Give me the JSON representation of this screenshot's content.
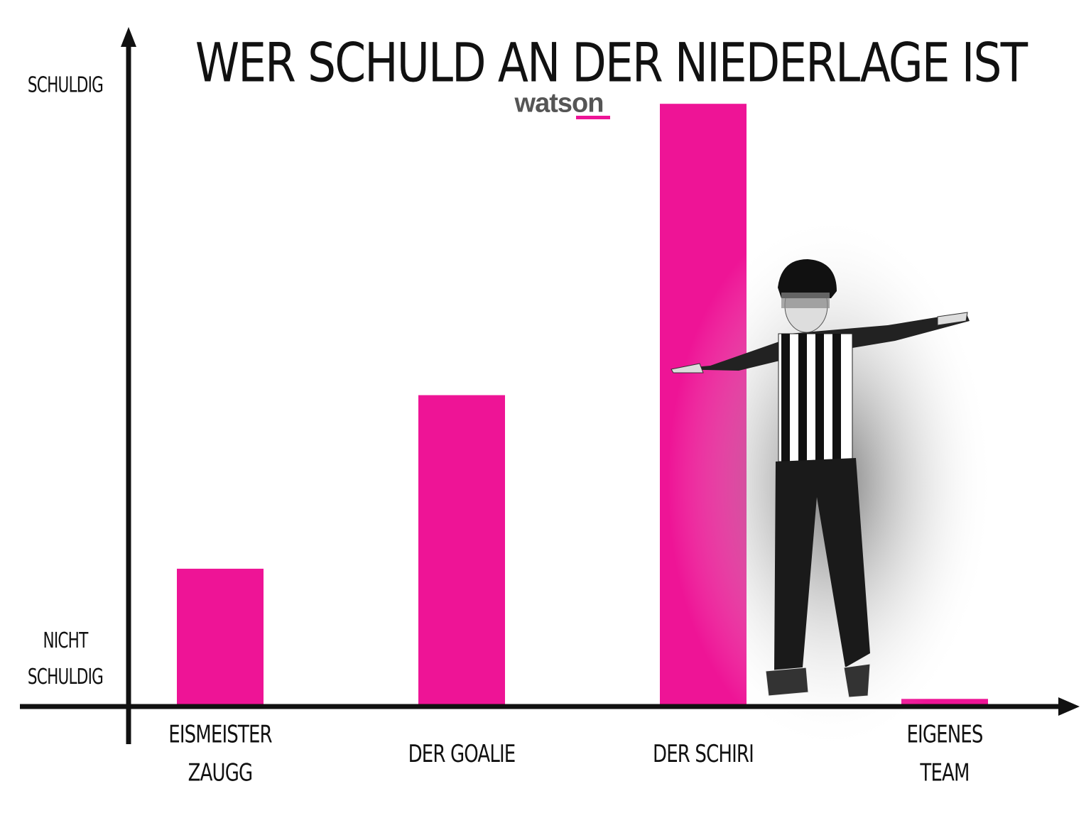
{
  "chart_data": {
    "type": "bar",
    "title": "WER SCHULD AN DER NIEDERLAGE IST",
    "logo": "watson",
    "categories": [
      "EISMEISTER ZAUGG",
      "DER GOALIE",
      "DER SCHIRI",
      "EIGENES TEAM"
    ],
    "values": [
      22,
      50,
      97,
      1
    ],
    "color": "#ee1496",
    "ylim": [
      0,
      100
    ],
    "yticks": [
      {
        "value": 0,
        "label": "NICHT SCHULDIG"
      },
      {
        "value": 100,
        "label": "SCHULDIG"
      }
    ],
    "grid": false
  }
}
